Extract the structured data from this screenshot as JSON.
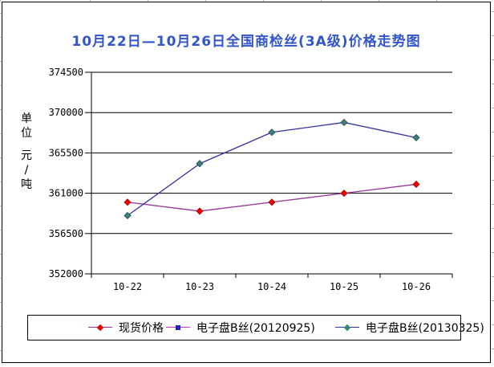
{
  "chart_data": {
    "type": "line",
    "title": "10月22日—10月26日全国商检丝(3A级)价格走势图",
    "ylabel": "单位 元/吨",
    "xlabel": "",
    "categories": [
      "10-22",
      "10-23",
      "10-24",
      "10-25",
      "10-26"
    ],
    "yticks": [
      352000,
      356500,
      361000,
      365500,
      370000,
      374500
    ],
    "ylim": [
      352000,
      374500
    ],
    "grid": "horizontal",
    "legend_position": "bottom",
    "series": [
      {
        "name": "现货价格",
        "values": [
          360000,
          359000,
          360000,
          361000,
          362000
        ],
        "line_color": "#993399",
        "marker": "diamond",
        "marker_color": "#ee0000",
        "marker_stroke": "#aa0000"
      },
      {
        "name": "电子盘B丝(20120925)",
        "values": [],
        "line_color": "#cc33cc",
        "marker": "square",
        "marker_color": "#2222cc",
        "marker_stroke": "#111177"
      },
      {
        "name": "电子盘B丝(20130325)",
        "values": [
          358500,
          364300,
          367800,
          368900,
          367200
        ],
        "line_color": "#3333a0",
        "marker": "diamond",
        "marker_color": "#3d8080",
        "marker_stroke": "#1f4848"
      }
    ],
    "colors": {
      "title": "#3355cc",
      "axis": "#000000"
    }
  }
}
